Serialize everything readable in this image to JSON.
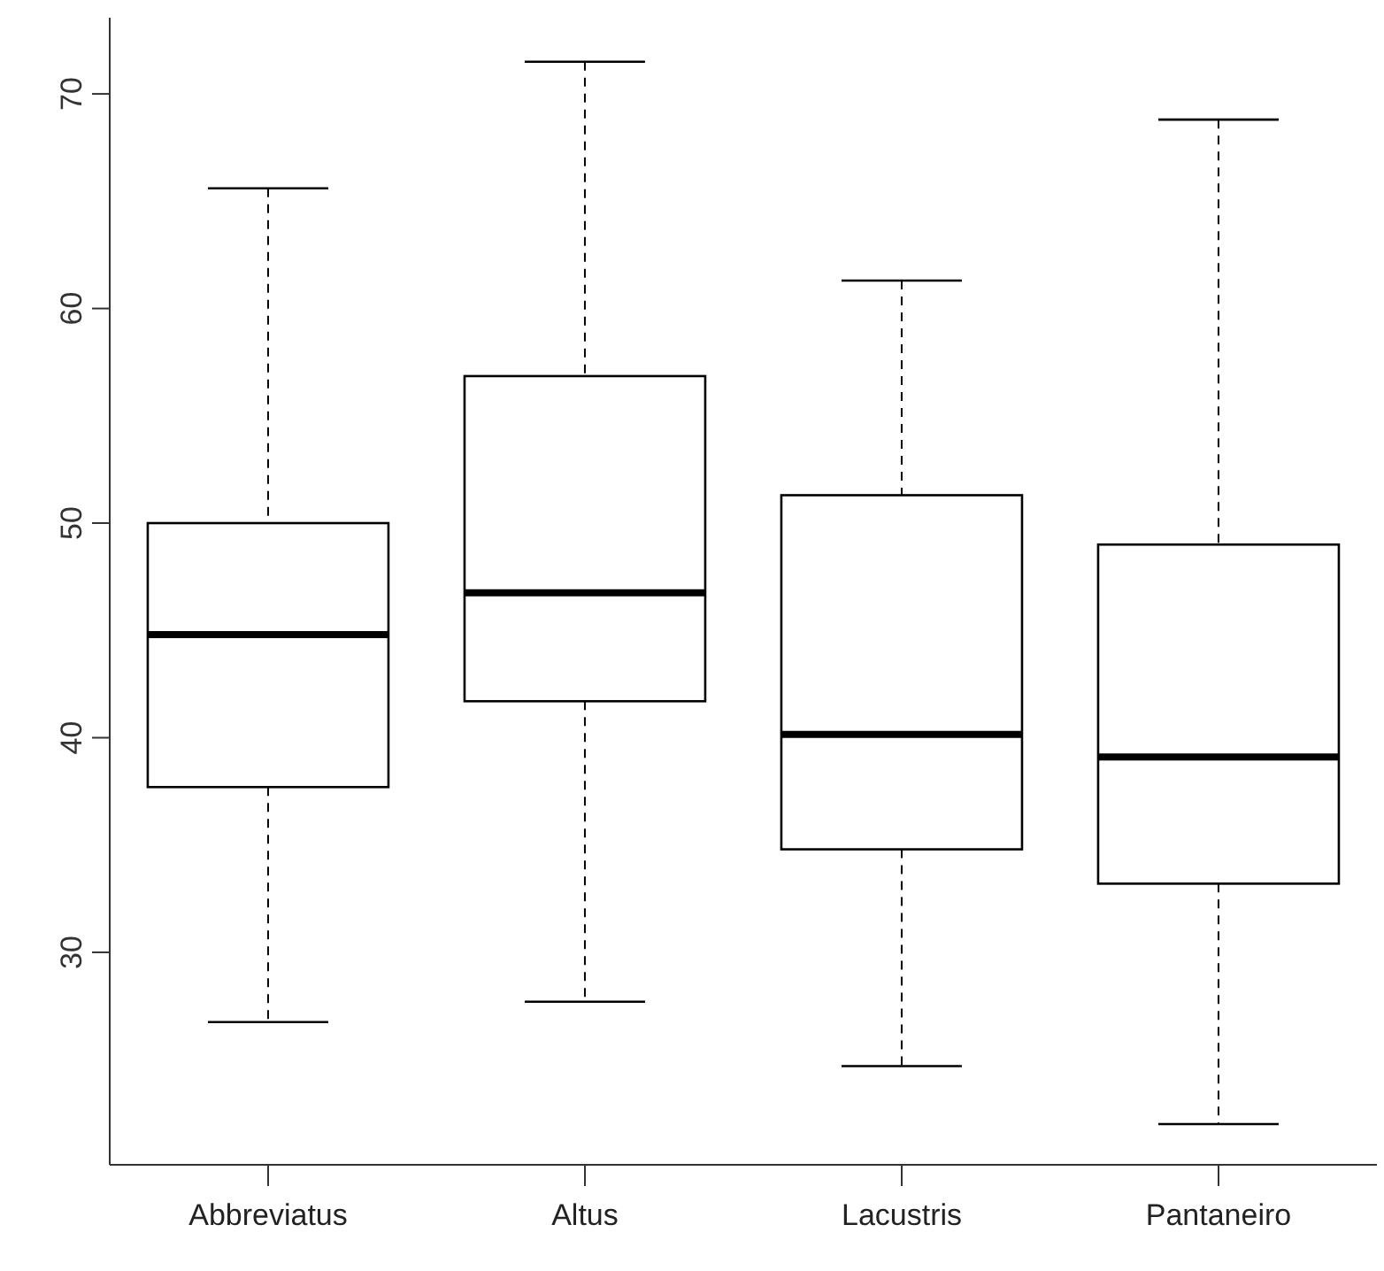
{
  "chart_data": {
    "type": "box",
    "categories": [
      "Abbreviatus",
      "Altus",
      "Lacustris",
      "Pantaneiro"
    ],
    "boxes": [
      {
        "low": 26.75,
        "q1": 37.7,
        "median": 44.8,
        "q3": 50.0,
        "high": 65.6
      },
      {
        "low": 27.7,
        "q1": 41.7,
        "median": 46.75,
        "q3": 56.85,
        "high": 71.5
      },
      {
        "low": 24.7,
        "q1": 34.8,
        "median": 40.15,
        "q3": 51.3,
        "high": 61.3
      },
      {
        "low": 22.0,
        "q1": 33.2,
        "median": 39.1,
        "q3": 49.0,
        "high": 68.8
      }
    ],
    "color": "#000000",
    "ylim": [
      20.1,
      73.55
    ],
    "yticks": [
      30,
      40,
      50,
      60,
      70
    ],
    "grid": false
  }
}
